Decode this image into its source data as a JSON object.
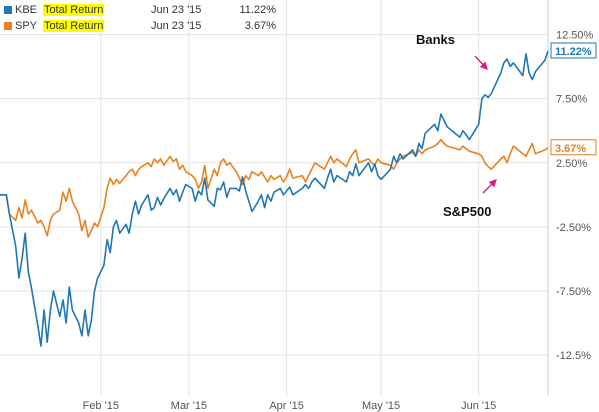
{
  "legend": [
    {
      "ticker": "KBE",
      "metric": "Total Return",
      "date": "Jun 23 '15",
      "value": "11.22%",
      "color": "#1f77b4"
    },
    {
      "ticker": "SPY",
      "metric": "Total Return",
      "date": "Jun 23 '15",
      "value": "3.67%",
      "color": "#e8821e"
    }
  ],
  "colors": {
    "kbe": "#1f77b4",
    "spy": "#e8821e",
    "annotation_arrow": "#d81b7a",
    "grid": "#e3e3e3"
  },
  "chart_data": {
    "type": "line",
    "title": "",
    "xlabel": "",
    "ylabel": "",
    "x_tick_labels": [
      "Feb '15",
      "Mar '15",
      "Apr '15",
      "May '15",
      "Jun '15"
    ],
    "y_tick_labels": [
      "12.50%",
      "7.50%",
      "2.50%",
      "-2.50%",
      "-7.50%",
      "-12.5%"
    ],
    "y_ticks": [
      12.5,
      7.5,
      2.5,
      -2.5,
      -7.5,
      -12.5
    ],
    "ylim": [
      -15.7,
      15.2
    ],
    "grid": true,
    "legend_position": "top-left",
    "end_labels": {
      "kbe": "11.22%",
      "spy": "3.67%"
    },
    "annotations": [
      {
        "text": "Banks",
        "series": "KBE"
      },
      {
        "text": "S&P500",
        "series": "SPY"
      }
    ],
    "x_start": "2014-12-31",
    "x_end": "2015-06-23",
    "series": [
      {
        "name": "KBE",
        "points": [
          [
            "2014-12-31",
            0.0
          ],
          [
            "2015-01-02",
            0.0
          ],
          [
            "2015-01-03",
            -1.5
          ],
          [
            "2015-01-05",
            -4.0
          ],
          [
            "2015-01-06",
            -6.5
          ],
          [
            "2015-01-07",
            -5.0
          ],
          [
            "2015-01-08",
            -3.0
          ],
          [
            "2015-01-09",
            -6.0
          ],
          [
            "2015-01-10",
            -7.3
          ],
          [
            "2015-01-12",
            -10.2
          ],
          [
            "2015-01-13",
            -11.8
          ],
          [
            "2015-01-14",
            -9.0
          ],
          [
            "2015-01-15",
            -11.5
          ],
          [
            "2015-01-16",
            -9.0
          ],
          [
            "2015-01-17",
            -7.5
          ],
          [
            "2015-01-19",
            -9.5
          ],
          [
            "2015-01-20",
            -8.2
          ],
          [
            "2015-01-21",
            -10.0
          ],
          [
            "2015-01-22",
            -7.2
          ],
          [
            "2015-01-23",
            -9.0
          ],
          [
            "2015-01-25",
            -10.0
          ],
          [
            "2015-01-26",
            -11.0
          ],
          [
            "2015-01-27",
            -9.0
          ],
          [
            "2015-01-28",
            -11.0
          ],
          [
            "2015-01-29",
            -9.8
          ],
          [
            "2015-01-30",
            -7.5
          ],
          [
            "2015-01-31",
            -6.5
          ],
          [
            "2015-02-02",
            -5.5
          ],
          [
            "2015-02-03",
            -3.5
          ],
          [
            "2015-02-04",
            -4.5
          ],
          [
            "2015-02-05",
            -2.5
          ],
          [
            "2015-02-06",
            -2.0
          ],
          [
            "2015-02-07",
            -3.0
          ],
          [
            "2015-02-09",
            -2.3
          ],
          [
            "2015-02-10",
            -3.0
          ],
          [
            "2015-02-11",
            -1.5
          ],
          [
            "2015-02-12",
            -0.5
          ],
          [
            "2015-02-13",
            -1.5
          ],
          [
            "2015-02-14",
            -0.8
          ],
          [
            "2015-02-16",
            0.0
          ],
          [
            "2015-02-17",
            -1.2
          ],
          [
            "2015-02-18",
            -1.0
          ],
          [
            "2015-02-19",
            -0.2
          ],
          [
            "2015-02-20",
            -0.8
          ],
          [
            "2015-02-21",
            -0.3
          ],
          [
            "2015-02-23",
            0.5
          ],
          [
            "2015-02-24",
            0.0
          ],
          [
            "2015-02-25",
            0.4
          ],
          [
            "2015-02-26",
            -0.5
          ],
          [
            "2015-02-27",
            0.2
          ],
          [
            "2015-02-28",
            0.8
          ],
          [
            "2015-03-02",
            0.5
          ],
          [
            "2015-03-03",
            -0.5
          ],
          [
            "2015-03-04",
            0.3
          ],
          [
            "2015-03-05",
            0.0
          ],
          [
            "2015-03-06",
            1.3
          ],
          [
            "2015-03-07",
            -0.4
          ],
          [
            "2015-03-09",
            -0.9
          ],
          [
            "2015-03-10",
            0.5
          ],
          [
            "2015-03-11",
            0.4
          ],
          [
            "2015-03-12",
            1.0
          ],
          [
            "2015-03-13",
            -0.2
          ],
          [
            "2015-03-14",
            0.5
          ],
          [
            "2015-03-16",
            0.5
          ],
          [
            "2015-03-17",
            0.3
          ],
          [
            "2015-03-18",
            1.4
          ],
          [
            "2015-03-19",
            0.3
          ],
          [
            "2015-03-20",
            -0.5
          ],
          [
            "2015-03-21",
            -1.3
          ],
          [
            "2015-03-23",
            -0.5
          ],
          [
            "2015-03-24",
            0.0
          ],
          [
            "2015-03-25",
            -1.0
          ],
          [
            "2015-03-26",
            0.0
          ],
          [
            "2015-03-27",
            -0.5
          ],
          [
            "2015-03-28",
            0.2
          ],
          [
            "2015-03-30",
            0.5
          ],
          [
            "2015-03-31",
            0.0
          ],
          [
            "2015-04-01",
            0.3
          ],
          [
            "2015-04-02",
            0.6
          ],
          [
            "2015-04-03",
            0.0
          ],
          [
            "2015-04-06",
            0.5
          ],
          [
            "2015-04-07",
            0.8
          ],
          [
            "2015-04-08",
            0.5
          ],
          [
            "2015-04-09",
            1.0
          ],
          [
            "2015-04-10",
            1.3
          ],
          [
            "2015-04-13",
            0.5
          ],
          [
            "2015-04-14",
            1.3
          ],
          [
            "2015-04-15",
            2.0
          ],
          [
            "2015-04-16",
            1.0
          ],
          [
            "2015-04-17",
            1.5
          ],
          [
            "2015-04-20",
            1.0
          ],
          [
            "2015-04-21",
            1.8
          ],
          [
            "2015-04-22",
            1.5
          ],
          [
            "2015-04-23",
            2.4
          ],
          [
            "2015-04-24",
            1.5
          ],
          [
            "2015-04-27",
            2.5
          ],
          [
            "2015-04-28",
            1.8
          ],
          [
            "2015-04-29",
            2.4
          ],
          [
            "2015-04-30",
            1.5
          ],
          [
            "2015-05-01",
            1.2
          ],
          [
            "2015-05-04",
            2.0
          ],
          [
            "2015-05-05",
            3.0
          ],
          [
            "2015-05-06",
            2.5
          ],
          [
            "2015-05-07",
            3.2
          ],
          [
            "2015-05-08",
            2.8
          ],
          [
            "2015-05-11",
            3.5
          ],
          [
            "2015-05-12",
            3.0
          ],
          [
            "2015-05-13",
            4.0
          ],
          [
            "2015-05-14",
            3.6
          ],
          [
            "2015-05-15",
            4.8
          ],
          [
            "2015-05-18",
            5.5
          ],
          [
            "2015-05-19",
            5.0
          ],
          [
            "2015-05-20",
            6.3
          ],
          [
            "2015-05-21",
            5.8
          ],
          [
            "2015-05-22",
            5.3
          ],
          [
            "2015-05-26",
            4.5
          ],
          [
            "2015-05-27",
            5.0
          ],
          [
            "2015-05-28",
            4.7
          ],
          [
            "2015-05-29",
            4.3
          ],
          [
            "2015-06-01",
            5.5
          ],
          [
            "2015-06-02",
            7.5
          ],
          [
            "2015-06-03",
            7.8
          ],
          [
            "2015-06-04",
            7.6
          ],
          [
            "2015-06-05",
            7.9
          ],
          [
            "2015-06-08",
            9.5
          ],
          [
            "2015-06-09",
            10.3
          ],
          [
            "2015-06-10",
            10.6
          ],
          [
            "2015-06-11",
            10.0
          ],
          [
            "2015-06-12",
            10.3
          ],
          [
            "2015-06-15",
            9.3
          ],
          [
            "2015-06-16",
            11.0
          ],
          [
            "2015-06-17",
            9.5
          ],
          [
            "2015-06-18",
            9.0
          ],
          [
            "2015-06-19",
            9.6
          ],
          [
            "2015-06-22",
            10.5
          ],
          [
            "2015-06-23",
            11.22
          ]
        ]
      },
      {
        "name": "SPY",
        "points": [
          [
            "2014-12-31",
            0.0
          ],
          [
            "2015-01-02",
            0.0
          ],
          [
            "2015-01-03",
            -1.5
          ],
          [
            "2015-01-05",
            -2.0
          ],
          [
            "2015-01-06",
            -1.0
          ],
          [
            "2015-01-07",
            -1.8
          ],
          [
            "2015-01-08",
            -0.4
          ],
          [
            "2015-01-09",
            -1.5
          ],
          [
            "2015-01-10",
            -1.2
          ],
          [
            "2015-01-12",
            -2.2
          ],
          [
            "2015-01-13",
            -2.0
          ],
          [
            "2015-01-14",
            -2.5
          ],
          [
            "2015-01-15",
            -3.2
          ],
          [
            "2015-01-16",
            -2.0
          ],
          [
            "2015-01-17",
            -1.5
          ],
          [
            "2015-01-19",
            -1.2
          ],
          [
            "2015-01-20",
            0.2
          ],
          [
            "2015-01-21",
            -0.5
          ],
          [
            "2015-01-22",
            0.5
          ],
          [
            "2015-01-23",
            -0.5
          ],
          [
            "2015-01-25",
            -1.5
          ],
          [
            "2015-01-26",
            -2.8
          ],
          [
            "2015-01-27",
            -2.0
          ],
          [
            "2015-01-28",
            -3.3
          ],
          [
            "2015-01-29",
            -2.8
          ],
          [
            "2015-01-30",
            -2.2
          ],
          [
            "2015-01-31",
            -2.5
          ],
          [
            "2015-02-02",
            -1.0
          ],
          [
            "2015-02-03",
            0.5
          ],
          [
            "2015-02-04",
            1.3
          ],
          [
            "2015-02-05",
            0.8
          ],
          [
            "2015-02-06",
            1.2
          ],
          [
            "2015-02-07",
            0.9
          ],
          [
            "2015-02-09",
            1.5
          ],
          [
            "2015-02-10",
            1.8
          ],
          [
            "2015-02-11",
            2.0
          ],
          [
            "2015-02-12",
            1.5
          ],
          [
            "2015-02-13",
            2.0
          ],
          [
            "2015-02-14",
            2.2
          ],
          [
            "2015-02-16",
            2.5
          ],
          [
            "2015-02-17",
            2.2
          ],
          [
            "2015-02-18",
            2.8
          ],
          [
            "2015-02-19",
            2.5
          ],
          [
            "2015-02-20",
            2.8
          ],
          [
            "2015-02-21",
            2.3
          ],
          [
            "2015-02-23",
            3.0
          ],
          [
            "2015-02-24",
            2.6
          ],
          [
            "2015-02-25",
            2.8
          ],
          [
            "2015-02-26",
            2.0
          ],
          [
            "2015-02-27",
            2.3
          ],
          [
            "2015-02-28",
            1.8
          ],
          [
            "2015-03-02",
            1.5
          ],
          [
            "2015-03-03",
            1.2
          ],
          [
            "2015-03-04",
            0.5
          ],
          [
            "2015-03-05",
            1.0
          ],
          [
            "2015-03-06",
            2.3
          ],
          [
            "2015-03-07",
            0.5
          ],
          [
            "2015-03-09",
            2.0
          ],
          [
            "2015-03-10",
            1.5
          ],
          [
            "2015-03-11",
            2.5
          ],
          [
            "2015-03-12",
            2.8
          ],
          [
            "2015-03-13",
            2.3
          ],
          [
            "2015-03-14",
            2.5
          ],
          [
            "2015-03-16",
            1.8
          ],
          [
            "2015-03-17",
            1.3
          ],
          [
            "2015-03-18",
            0.8
          ],
          [
            "2015-03-19",
            1.5
          ],
          [
            "2015-03-20",
            1.2
          ],
          [
            "2015-03-21",
            1.8
          ],
          [
            "2015-03-23",
            1.5
          ],
          [
            "2015-03-24",
            1.8
          ],
          [
            "2015-03-25",
            1.4
          ],
          [
            "2015-03-26",
            1.0
          ],
          [
            "2015-03-27",
            1.5
          ],
          [
            "2015-03-28",
            1.2
          ],
          [
            "2015-03-30",
            1.5
          ],
          [
            "2015-03-31",
            1.0
          ],
          [
            "2015-04-01",
            1.4
          ],
          [
            "2015-04-02",
            2.0
          ],
          [
            "2015-04-03",
            1.3
          ],
          [
            "2015-04-06",
            1.5
          ],
          [
            "2015-04-07",
            1.0
          ],
          [
            "2015-04-08",
            1.5
          ],
          [
            "2015-04-09",
            2.0
          ],
          [
            "2015-04-10",
            2.5
          ],
          [
            "2015-04-13",
            2.0
          ],
          [
            "2015-04-14",
            2.5
          ],
          [
            "2015-04-15",
            3.0
          ],
          [
            "2015-04-16",
            2.5
          ],
          [
            "2015-04-17",
            2.8
          ],
          [
            "2015-04-20",
            2.2
          ],
          [
            "2015-04-21",
            2.8
          ],
          [
            "2015-04-22",
            3.2
          ],
          [
            "2015-04-23",
            3.5
          ],
          [
            "2015-04-24",
            2.5
          ],
          [
            "2015-04-27",
            2.8
          ],
          [
            "2015-04-28",
            2.5
          ],
          [
            "2015-04-29",
            2.3
          ],
          [
            "2015-04-30",
            2.8
          ],
          [
            "2015-05-01",
            2.5
          ],
          [
            "2015-05-04",
            2.3
          ],
          [
            "2015-05-05",
            2.0
          ],
          [
            "2015-05-06",
            2.5
          ],
          [
            "2015-05-07",
            2.8
          ],
          [
            "2015-05-08",
            3.0
          ],
          [
            "2015-05-11",
            3.3
          ],
          [
            "2015-05-12",
            3.0
          ],
          [
            "2015-05-13",
            3.5
          ],
          [
            "2015-05-14",
            3.2
          ],
          [
            "2015-05-15",
            3.5
          ],
          [
            "2015-05-18",
            3.8
          ],
          [
            "2015-05-19",
            4.0
          ],
          [
            "2015-05-20",
            4.3
          ],
          [
            "2015-05-21",
            4.0
          ],
          [
            "2015-05-22",
            3.8
          ],
          [
            "2015-05-26",
            3.5
          ],
          [
            "2015-05-27",
            3.8
          ],
          [
            "2015-05-28",
            3.6
          ],
          [
            "2015-05-29",
            3.4
          ],
          [
            "2015-06-01",
            3.2
          ],
          [
            "2015-06-02",
            3.0
          ],
          [
            "2015-06-03",
            2.5
          ],
          [
            "2015-06-04",
            2.2
          ],
          [
            "2015-06-05",
            2.0
          ],
          [
            "2015-06-08",
            2.8
          ],
          [
            "2015-06-09",
            3.0
          ],
          [
            "2015-06-10",
            2.5
          ],
          [
            "2015-06-11",
            3.2
          ],
          [
            "2015-06-12",
            3.8
          ],
          [
            "2015-06-15",
            3.2
          ],
          [
            "2015-06-16",
            3.0
          ],
          [
            "2015-06-17",
            3.5
          ],
          [
            "2015-06-18",
            4.0
          ],
          [
            "2015-06-19",
            3.2
          ],
          [
            "2015-06-22",
            3.5
          ],
          [
            "2015-06-23",
            3.67
          ]
        ]
      }
    ]
  }
}
